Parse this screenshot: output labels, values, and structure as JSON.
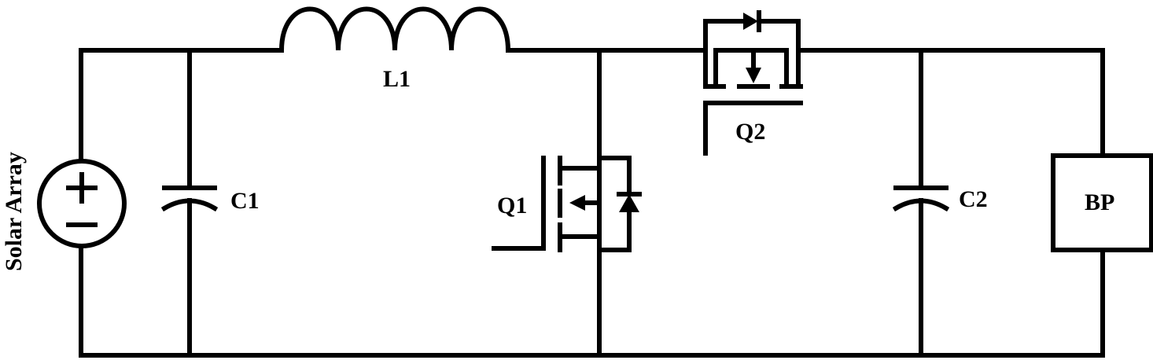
{
  "source": {
    "label": "Solar Array",
    "plus": "+",
    "minus": "−"
  },
  "components": {
    "c1": "C1",
    "l1": "L1",
    "q1": "Q1",
    "q2": "Q2",
    "c2": "C2",
    "bp": "BP"
  }
}
